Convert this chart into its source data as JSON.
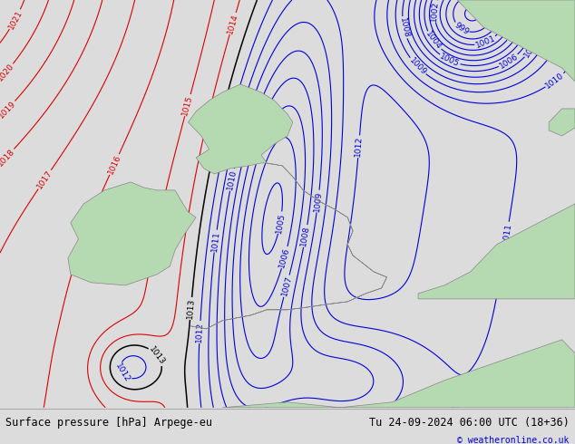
{
  "title_left": "Surface pressure [hPa] Arpege-eu",
  "title_right": "Tu 24-09-2024 06:00 UTC (18+36)",
  "credit": "© weatheronline.co.uk",
  "background_color": "#dcdcdc",
  "land_color": "#b5d9b0",
  "border_color": "#888888",
  "blue_color": "#0000dd",
  "red_color": "#dd0000",
  "black_color": "#000000",
  "figsize": [
    6.34,
    4.9
  ],
  "dpi": 100,
  "lon_min": -13,
  "lon_max": 9,
  "lat_min": 47,
  "lat_max": 62
}
